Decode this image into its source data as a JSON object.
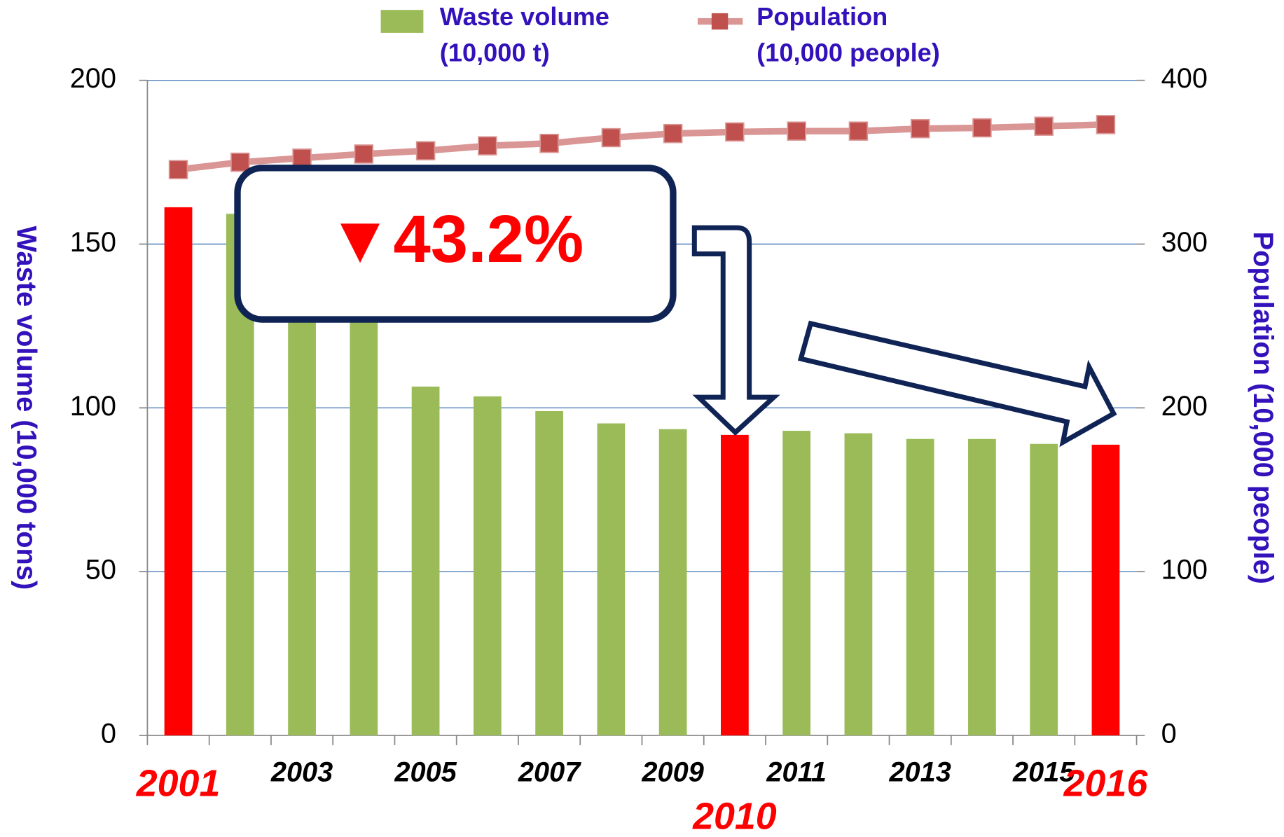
{
  "chart_data": {
    "type": "bar_line",
    "categories": [
      "2001",
      null,
      "2003",
      null,
      "2005",
      null,
      "2007",
      null,
      "2009",
      "2010",
      "2011",
      null,
      "2013",
      null,
      "2015",
      "2016"
    ],
    "series": [
      {
        "name": "Waste volume (10,000 t)",
        "type": "bar",
        "color": "#9bbb59",
        "colors": [
          "#ff0000",
          "#9bbb59",
          "#9bbb59",
          "#9bbb59",
          "#9bbb59",
          "#9bbb59",
          "#9bbb59",
          "#9bbb59",
          "#9bbb59",
          "#ff0000",
          "#9bbb59",
          "#9bbb59",
          "#9bbb59",
          "#9bbb59",
          "#9bbb59",
          "#ff0000"
        ],
        "values": [
          161.25,
          159.25,
          145,
          135,
          106.5,
          103.5,
          99,
          95.25,
          93.5,
          91.75,
          93,
          92.25,
          90.5,
          90.5,
          89,
          88.75
        ]
      },
      {
        "name": "Population (10,000 people)",
        "type": "line",
        "axis": "y2",
        "color": "#c0504d",
        "line_color": "#d99694",
        "values": [
          345.5,
          350,
          352.5,
          355,
          357,
          360,
          361.5,
          365,
          367.5,
          368.5,
          369,
          369,
          370.5,
          371,
          372,
          373
        ]
      }
    ],
    "y_label": "Waste volume (10,000 tons)",
    "y2_label": "Population (10,000 people)",
    "annotation": "▼43.2%",
    "ylim": [
      0,
      200
    ],
    "yticks": [
      0,
      50,
      100,
      150,
      200
    ],
    "y2lim": [
      0,
      400
    ],
    "y2ticks": [
      0,
      100,
      200,
      300,
      400
    ],
    "grid": true,
    "legend": "top"
  }
}
